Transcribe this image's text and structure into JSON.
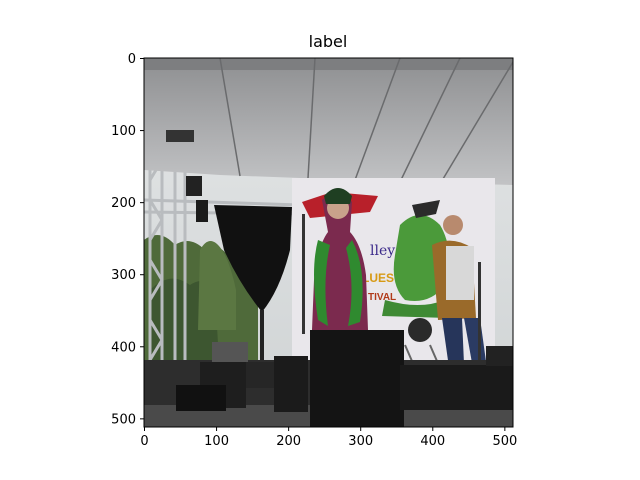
{
  "figure": {
    "title": "label"
  },
  "image": {
    "description_hidden": "",
    "scene": "outdoor festival stage under white canopy with performers"
  },
  "axes": {
    "x_ticks": [
      "0",
      "100",
      "200",
      "300",
      "400",
      "500"
    ],
    "y_ticks": [
      "0",
      "100",
      "200",
      "300",
      "400",
      "500"
    ],
    "x_values": [
      0,
      100,
      200,
      300,
      400,
      500
    ],
    "y_values": [
      0,
      100,
      200,
      300,
      400,
      500
    ],
    "xlim": [
      0,
      512
    ],
    "ylim": [
      512,
      0
    ]
  },
  "banner": {
    "text_line1": "lley",
    "text_line2": "LUES",
    "text_line3": "TIVAL"
  }
}
